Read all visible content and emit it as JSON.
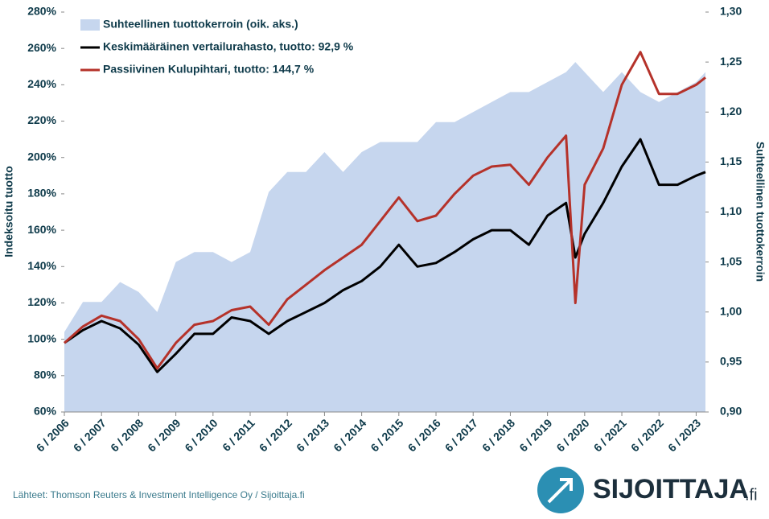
{
  "chart_data": {
    "type": "line",
    "ylabel": "Indeksoitu tuotto",
    "y2label": "Suhteellinen tuottokerroin",
    "source": "Lähteet: Thomson Reuters & Investment Intelligence Oy / Sijoittaja.fi",
    "brand": "SIJOITTAJA",
    "brand_suffix": ".fi",
    "legend": "upper left",
    "x": [
      "2006-06",
      "2006-12",
      "2007-06",
      "2007-12",
      "2008-06",
      "2008-12",
      "2009-06",
      "2009-12",
      "2010-06",
      "2010-12",
      "2011-06",
      "2011-12",
      "2012-06",
      "2012-12",
      "2013-06",
      "2013-12",
      "2014-06",
      "2014-12",
      "2015-06",
      "2015-12",
      "2016-06",
      "2016-12",
      "2017-06",
      "2017-12",
      "2018-06",
      "2018-12",
      "2019-06",
      "2019-12",
      "2020-03",
      "2020-06",
      "2020-12",
      "2021-06",
      "2021-12",
      "2022-06",
      "2022-12",
      "2023-06",
      "2023-09"
    ],
    "xlim": [
      "2006-06",
      "2023-09"
    ],
    "xticks": [
      {
        "value": "2006-06",
        "label": "6 / 2006"
      },
      {
        "value": "2007-06",
        "label": "6 / 2007"
      },
      {
        "value": "2008-06",
        "label": "6 / 2008"
      },
      {
        "value": "2009-06",
        "label": "6 / 2009"
      },
      {
        "value": "2010-06",
        "label": "6 / 2010"
      },
      {
        "value": "2011-06",
        "label": "6 / 2011"
      },
      {
        "value": "2012-06",
        "label": "6 / 2012"
      },
      {
        "value": "2013-06",
        "label": "6 / 2013"
      },
      {
        "value": "2014-06",
        "label": "6 / 2014"
      },
      {
        "value": "2015-06",
        "label": "6 / 2015"
      },
      {
        "value": "2016-06",
        "label": "6 / 2016"
      },
      {
        "value": "2017-06",
        "label": "6 / 2017"
      },
      {
        "value": "2018-06",
        "label": "6 / 2018"
      },
      {
        "value": "2019-06",
        "label": "6 / 2019"
      },
      {
        "value": "2020-06",
        "label": "6 / 2020"
      },
      {
        "value": "2021-06",
        "label": "6 / 2021"
      },
      {
        "value": "2022-06",
        "label": "6 / 2022"
      },
      {
        "value": "2023-06",
        "label": "6 / 2023"
      }
    ],
    "ylim": [
      60,
      280
    ],
    "yticks": [
      {
        "value": 60,
        "label": "60%"
      },
      {
        "value": 80,
        "label": "80%"
      },
      {
        "value": 100,
        "label": "100%"
      },
      {
        "value": 120,
        "label": "120%"
      },
      {
        "value": 140,
        "label": "140%"
      },
      {
        "value": 160,
        "label": "160%"
      },
      {
        "value": 180,
        "label": "180%"
      },
      {
        "value": 200,
        "label": "200%"
      },
      {
        "value": 220,
        "label": "220%"
      },
      {
        "value": 240,
        "label": "240%"
      },
      {
        "value": 260,
        "label": "260%"
      },
      {
        "value": 280,
        "label": "280%"
      }
    ],
    "y2lim": [
      0.9,
      1.3
    ],
    "y2ticks": [
      {
        "value": 0.9,
        "label": "0,90"
      },
      {
        "value": 0.95,
        "label": "0,95"
      },
      {
        "value": 1,
        "label": "1,00"
      },
      {
        "value": 1.05,
        "label": "1,05"
      },
      {
        "value": 1.1,
        "label": "1,10"
      },
      {
        "value": 1.15,
        "label": "1,15"
      },
      {
        "value": 1.2,
        "label": "1,20"
      },
      {
        "value": 1.25,
        "label": "1,25"
      },
      {
        "value": 1.3,
        "label": "1,30"
      }
    ],
    "series": [
      {
        "name": "Suhteellinen tuottokerroin (oik. aks.)",
        "color": "#c6d6ee",
        "axis": "y2",
        "style": "area",
        "values": [
          0.98,
          1.01,
          1.01,
          1.03,
          1.02,
          1.0,
          1.05,
          1.06,
          1.06,
          1.05,
          1.06,
          1.12,
          1.14,
          1.14,
          1.16,
          1.14,
          1.16,
          1.17,
          1.17,
          1.17,
          1.19,
          1.19,
          1.2,
          1.21,
          1.22,
          1.22,
          1.23,
          1.24,
          1.25,
          1.24,
          1.22,
          1.24,
          1.22,
          1.21,
          1.22,
          1.23,
          1.24
        ]
      },
      {
        "name": "Keskimääräinen vertailurahasto, tuotto: 92,9 %",
        "color": "#000000",
        "style": "line",
        "values": [
          98,
          105,
          110,
          106,
          97,
          82,
          92,
          103,
          103,
          112,
          110,
          103,
          110,
          115,
          120,
          127,
          132,
          140,
          152,
          140,
          142,
          148,
          155,
          160,
          160,
          152,
          168,
          175,
          145,
          158,
          175,
          195,
          210,
          185,
          185,
          190,
          192
        ]
      },
      {
        "name": "Passiivinen Kulupihtari, tuotto: 144,7 %",
        "color": "#b5322a",
        "style": "line",
        "values": [
          98,
          107,
          113,
          110,
          100,
          84,
          98,
          108,
          110,
          116,
          118,
          108,
          122,
          130,
          138,
          145,
          152,
          165,
          178,
          165,
          168,
          180,
          190,
          195,
          196,
          185,
          200,
          212,
          120,
          185,
          205,
          240,
          258,
          235,
          235,
          240,
          244
        ]
      }
    ]
  }
}
